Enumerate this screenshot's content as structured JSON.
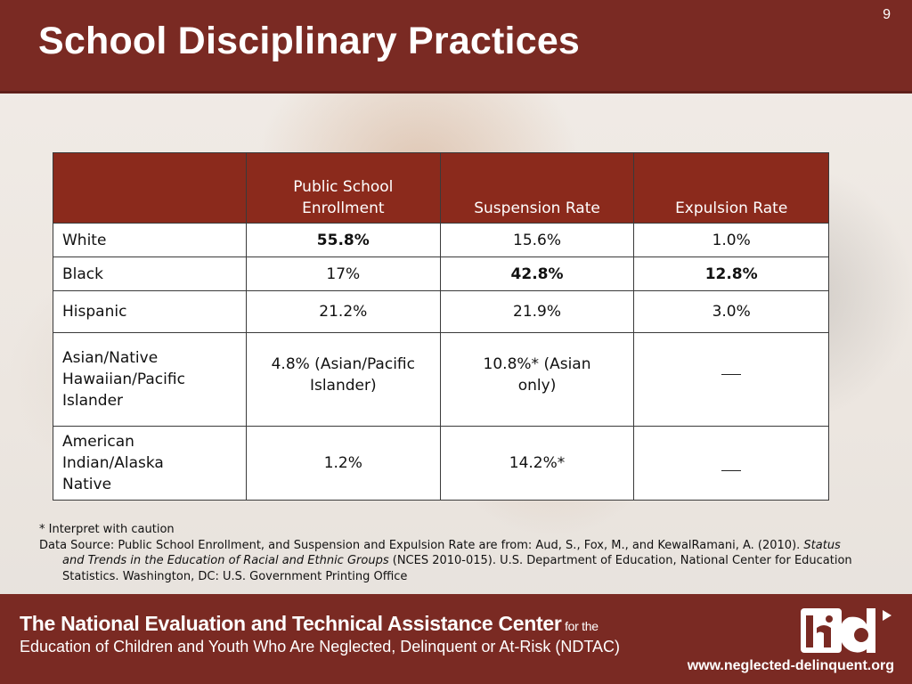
{
  "slide": {
    "title": "School Disciplinary Practices",
    "page_number": "9"
  },
  "table": {
    "headers": [
      "",
      "Public School Enrollment",
      "Suspension Rate",
      "Expulsion Rate"
    ],
    "rows": [
      {
        "group": "White",
        "enrollment": "55.8%",
        "suspension": "15.6%",
        "expulsion": "1.0%"
      },
      {
        "group": "Black",
        "enrollment": "17%",
        "suspension": "42.8%",
        "expulsion": "12.8%"
      },
      {
        "group": "Hispanic",
        "enrollment": "21.2%",
        "suspension": "21.9%",
        "expulsion": "3.0%"
      },
      {
        "group": "Asian/Native Hawaiian/Pacific Islander",
        "enrollment": "4.8% (Asian/Pacific Islander)",
        "suspension": "10.8%* (Asian only)",
        "expulsion": ""
      },
      {
        "group": "American Indian/Alaska Native",
        "enrollment": "1.2%",
        "suspension": "14.2%*",
        "expulsion": ""
      }
    ]
  },
  "notes": {
    "caution": "* Interpret with caution",
    "source_prefix": "Data Source: Public School Enrollment, and Suspension and Expulsion Rate are from: Aud, S., Fox, M., and KewalRamani, A. (2010). ",
    "source_title": "Status and Trends in the Education of Racial and Ethnic Groups",
    "source_suffix": " (NCES 2010-015). U.S. Department of Education, National Center for Education Statistics. Washington, DC: U.S. Government Printing Office"
  },
  "footer": {
    "line1_main": "The National Evaluation and Technical Assistance Center",
    "line1_small": " for the",
    "line2": "Education of Children and Youth Who Are Neglected, Delinquent or At-Risk (NDTAC)",
    "url": "www.neglected-delinquent.org",
    "logo_icon": "nd-logo-icon"
  },
  "colors": {
    "header_bg": "#7a2a23",
    "table_header_bg": "#8b2a1c",
    "footer_bg": "#7a2a23"
  }
}
